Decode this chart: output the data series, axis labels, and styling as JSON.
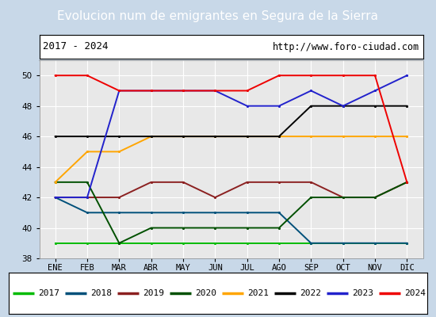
{
  "title": "Evolucion num de emigrantes en Segura de la Sierra",
  "subtitle_left": "2017 - 2024",
  "subtitle_right": "http://www.foro-ciudad.com",
  "months": [
    "ENE",
    "FEB",
    "MAR",
    "ABR",
    "MAY",
    "JUN",
    "JUL",
    "AGO",
    "SEP",
    "OCT",
    "NOV",
    "DIC"
  ],
  "ylim": [
    38,
    51
  ],
  "yticks": [
    38,
    40,
    42,
    44,
    46,
    48,
    50
  ],
  "series": {
    "2017": {
      "color": "#00bb00",
      "data": [
        39,
        39,
        39,
        39,
        39,
        39,
        39,
        39,
        39,
        39,
        39,
        39
      ]
    },
    "2018": {
      "color": "#00507a",
      "data": [
        42,
        41,
        41,
        41,
        41,
        41,
        41,
        41,
        39,
        39,
        39,
        39
      ]
    },
    "2019": {
      "color": "#8b2020",
      "data": [
        42,
        42,
        42,
        43,
        43,
        42,
        43,
        43,
        43,
        42,
        42,
        43
      ]
    },
    "2020": {
      "color": "#005000",
      "data": [
        43,
        43,
        39,
        40,
        40,
        40,
        40,
        40,
        42,
        42,
        42,
        43
      ]
    },
    "2021": {
      "color": "#ffa500",
      "data": [
        43,
        45,
        45,
        46,
        46,
        46,
        46,
        46,
        46,
        46,
        46,
        46
      ]
    },
    "2022": {
      "color": "#000000",
      "data": [
        46,
        46,
        46,
        46,
        46,
        46,
        46,
        46,
        48,
        48,
        48,
        48
      ]
    },
    "2023": {
      "color": "#2222cc",
      "data": [
        42,
        42,
        49,
        49,
        49,
        49,
        48,
        48,
        49,
        48,
        49,
        50
      ]
    },
    "2024": {
      "color": "#ee0000",
      "data": [
        50,
        50,
        49,
        49,
        49,
        49,
        49,
        50,
        50,
        50,
        50,
        43
      ]
    }
  },
  "title_bg": "#4d94d4",
  "title_color": "#ffffff",
  "plot_bg": "#e8e8e8",
  "grid_color": "#ffffff",
  "fig_bg": "#c8d8e8"
}
